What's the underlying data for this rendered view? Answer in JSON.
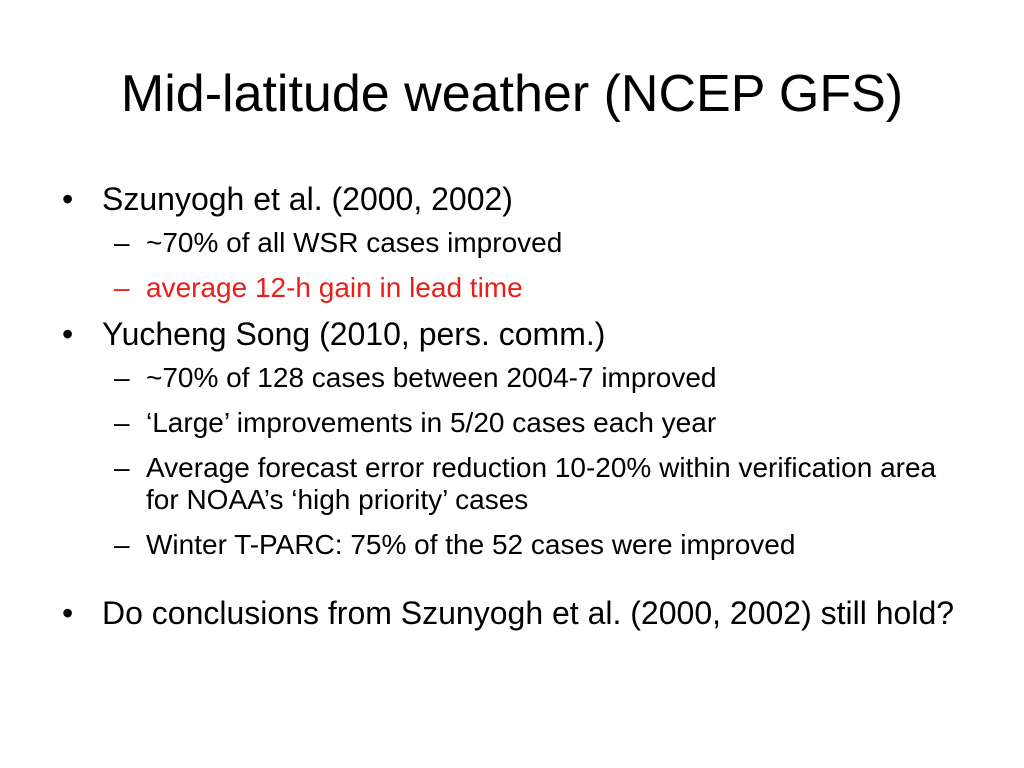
{
  "slide": {
    "title": "Mid-latitude weather (NCEP GFS)",
    "bullet_glyph": "•",
    "dash_glyph": "–",
    "highlight_color": "#e8201a",
    "sections": [
      {
        "text": "Szunyogh et al. (2000, 2002)",
        "subitems": [
          "~70% of all WSR cases improved",
          "average 12-h gain in lead time"
        ]
      },
      {
        "text": "Yucheng Song (2010, pers. comm.)",
        "subitems": [
          "~70% of 128 cases between 2004-7 improved",
          "‘Large’ improvements in 5/20 cases each year",
          "Average forecast error reduction 10-20% within verification area for NOAA’s ‘high priority’ cases",
          "Winter T-PARC: 75% of the 52 cases were improved"
        ]
      },
      {
        "text": "Do conclusions from Szunyogh et al. (2000, 2002) still hold?",
        "subitems": []
      }
    ]
  }
}
